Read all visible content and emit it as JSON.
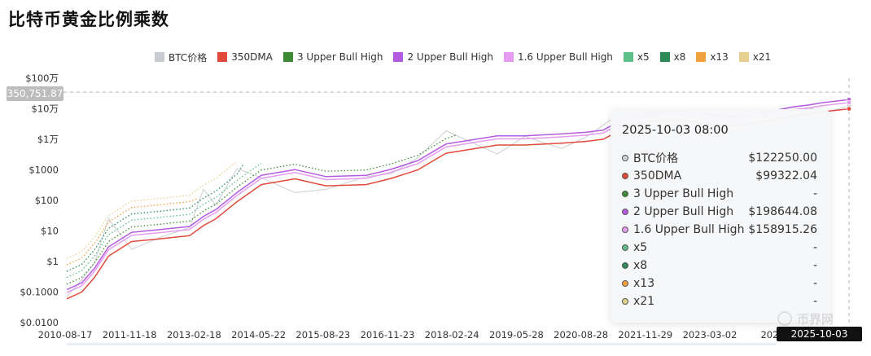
{
  "page": {
    "title": "比特币黄金比例乘数"
  },
  "chart_data": {
    "type": "line",
    "title": "比特币黄金比例乘数",
    "y_scale": "log",
    "ylim": [
      0.01,
      1000000
    ],
    "y_ticks": [
      {
        "value": 1000000,
        "label": "$100万"
      },
      {
        "value": 100000,
        "label": "$10万"
      },
      {
        "value": 10000,
        "label": "$1万"
      },
      {
        "value": 1000,
        "label": "$1000"
      },
      {
        "value": 100,
        "label": "$100"
      },
      {
        "value": 10,
        "label": "$10"
      },
      {
        "value": 1,
        "label": "$1"
      },
      {
        "value": 0.1,
        "label": "$0.1000"
      },
      {
        "value": 0.01,
        "label": "$0.0100"
      }
    ],
    "xlim": [
      "2010-08-17",
      "2025-10-03"
    ],
    "x_ticks": [
      "2010-08-17",
      "2011-11-18",
      "2013-02-18",
      "2014-05-22",
      "2015-08-23",
      "2016-11-23",
      "2018-02-24",
      "2019-05-28",
      "2020-08-28",
      "2021-11-29",
      "2023-03-02",
      "2024-"
    ],
    "legend_position": "top",
    "grid": false,
    "series": [
      {
        "name": "BTC价格",
        "color": "#c9cdd2",
        "style": "thin",
        "x": [
          "2010-08-17",
          "2010-12-01",
          "2011-03-01",
          "2011-06-08",
          "2011-11-18",
          "2012-06-01",
          "2013-01-01",
          "2013-04-09",
          "2013-07-05",
          "2013-12-01",
          "2014-05-22",
          "2015-01-14",
          "2015-08-23",
          "2016-06-01",
          "2016-11-23",
          "2017-06-01",
          "2017-12-17",
          "2018-12-15",
          "2019-06-26",
          "2020-03-13",
          "2020-08-28",
          "2020-12-31",
          "2021-04-14",
          "2021-07-20",
          "2021-11-10",
          "2022-06-18",
          "2022-11-21",
          "2023-06-01",
          "2024-03-14",
          "2024-09-06",
          "2024-12-17",
          "2025-04-08",
          "2025-10-03"
        ],
        "y": [
          0.07,
          0.25,
          0.9,
          25,
          2.5,
          6,
          13,
          230,
          70,
          1100,
          550,
          180,
          230,
          600,
          740,
          2500,
          19000,
          3300,
          12500,
          5000,
          11500,
          29000,
          63000,
          30000,
          67000,
          19000,
          16000,
          27000,
          73000,
          54000,
          107000,
          76000,
          122250
        ]
      },
      {
        "name": "350DMA",
        "color": "#e24a3b",
        "style": "solid",
        "x": [
          "2010-08-17",
          "2010-12-01",
          "2011-03-01",
          "2011-06-08",
          "2011-11-18",
          "2012-06-01",
          "2013-01-01",
          "2013-04-09",
          "2013-07-05",
          "2013-12-01",
          "2014-05-22",
          "2015-01-14",
          "2015-08-23",
          "2016-06-01",
          "2016-11-23",
          "2017-06-01",
          "2017-12-17",
          "2018-12-15",
          "2019-06-26",
          "2020-03-13",
          "2020-08-28",
          "2020-12-31",
          "2021-04-14",
          "2021-07-20",
          "2021-11-10",
          "2022-06-18",
          "2022-11-21",
          "2023-06-01",
          "2024-03-14",
          "2024-09-06",
          "2024-12-17",
          "2025-04-08",
          "2025-10-03"
        ],
        "y": [
          0.06,
          0.1,
          0.3,
          1.5,
          4.5,
          5.5,
          7,
          15,
          25,
          90,
          330,
          510,
          300,
          330,
          520,
          1000,
          3500,
          6500,
          6500,
          7500,
          8500,
          10000,
          18000,
          28000,
          38000,
          42000,
          34000,
          26000,
          40000,
          58000,
          66000,
          80000,
          99322.04
        ]
      },
      {
        "name": "3 Upper Bull High",
        "color": "#3d8b37",
        "style": "dotted",
        "x": [
          "2010-08-17",
          "2010-12-01",
          "2011-03-01",
          "2011-06-08",
          "2011-11-18",
          "2012-06-01",
          "2013-01-01",
          "2013-04-09",
          "2013-07-05",
          "2013-12-01",
          "2014-05-22",
          "2015-01-14",
          "2015-08-23",
          "2016-06-01",
          "2016-11-23",
          "2017-06-01",
          "2017-12-17",
          "2018-02-24"
        ],
        "y": [
          0.18,
          0.3,
          0.9,
          4.5,
          13.5,
          16.5,
          21,
          45,
          75,
          270,
          990,
          1530,
          900,
          990,
          1560,
          3000,
          10500,
          13500
        ]
      },
      {
        "name": "2 Upper Bull High",
        "color": "#b45ce0",
        "style": "solid",
        "x": [
          "2010-08-17",
          "2010-12-01",
          "2011-03-01",
          "2011-06-08",
          "2011-11-18",
          "2012-06-01",
          "2013-01-01",
          "2013-04-09",
          "2013-07-05",
          "2013-12-01",
          "2014-05-22",
          "2015-01-14",
          "2015-08-23",
          "2016-06-01",
          "2016-11-23",
          "2017-06-01",
          "2017-12-17",
          "2018-12-15",
          "2019-06-26",
          "2020-03-13",
          "2020-08-28",
          "2020-12-31",
          "2021-04-14",
          "2021-07-20",
          "2021-11-10",
          "2022-06-18",
          "2022-11-21",
          "2023-06-01",
          "2024-03-14",
          "2024-09-06",
          "2024-12-17",
          "2025-04-08",
          "2025-10-03"
        ],
        "y": [
          0.12,
          0.2,
          0.6,
          3,
          9,
          11,
          14,
          30,
          50,
          180,
          660,
          1020,
          600,
          660,
          1040,
          2000,
          7000,
          13000,
          13000,
          15000,
          17000,
          20000,
          36000,
          56000,
          76000,
          84000,
          68000,
          52000,
          80000,
          116000,
          132000,
          160000,
          198644.08
        ]
      },
      {
        "name": "1.6 Upper Bull High",
        "color": "#e59cf0",
        "style": "solid",
        "x": [
          "2010-08-17",
          "2010-12-01",
          "2011-03-01",
          "2011-06-08",
          "2011-11-18",
          "2012-06-01",
          "2013-01-01",
          "2013-04-09",
          "2013-07-05",
          "2013-12-01",
          "2014-05-22",
          "2015-01-14",
          "2015-08-23",
          "2016-06-01",
          "2016-11-23",
          "2017-06-01",
          "2017-12-17",
          "2018-12-15",
          "2019-06-26",
          "2020-03-13",
          "2020-08-28",
          "2020-12-31",
          "2021-04-14",
          "2021-07-20",
          "2021-11-10",
          "2022-06-18",
          "2022-11-21",
          "2023-06-01",
          "2024-03-14",
          "2024-09-06",
          "2024-12-17",
          "2025-04-08",
          "2025-10-03"
        ],
        "y": [
          0.096,
          0.16,
          0.48,
          2.4,
          7.2,
          8.8,
          11.2,
          24,
          40,
          144,
          528,
          816,
          480,
          528,
          832,
          1600,
          5600,
          10400,
          10400,
          12000,
          13600,
          16000,
          28800,
          44800,
          60800,
          67200,
          54400,
          41600,
          64000,
          92800,
          105600,
          128000,
          158915.26
        ]
      },
      {
        "name": "x5",
        "color": "#5cc08a",
        "style": "dotted",
        "x": [
          "2010-08-17",
          "2010-12-01",
          "2011-03-01",
          "2011-06-08",
          "2011-11-18",
          "2012-06-01",
          "2013-01-01",
          "2013-04-09",
          "2013-07-05",
          "2013-12-01",
          "2014-05-22"
        ],
        "y": [
          0.3,
          0.5,
          1.5,
          7.5,
          22.5,
          27.5,
          35,
          75,
          125,
          450,
          1650
        ]
      },
      {
        "name": "x8",
        "color": "#2e8b57",
        "style": "dotted",
        "x": [
          "2010-08-17",
          "2010-12-01",
          "2011-03-01",
          "2011-06-08",
          "2011-11-18",
          "2012-06-01",
          "2013-01-01",
          "2013-04-09",
          "2013-07-05",
          "2013-12-01",
          "2014-01-15"
        ],
        "y": [
          0.48,
          0.8,
          2.4,
          12,
          36,
          44,
          56,
          120,
          200,
          720,
          1500
        ]
      },
      {
        "name": "x13",
        "color": "#f0a03c",
        "style": "dotted",
        "x": [
          "2010-08-17",
          "2010-12-01",
          "2011-03-01",
          "2011-06-08",
          "2011-11-18",
          "2012-06-01",
          "2013-01-01",
          "2013-02-18"
        ],
        "y": [
          0.78,
          1.3,
          3.9,
          19.5,
          58.5,
          71.5,
          91,
          110
        ]
      },
      {
        "name": "x21",
        "color": "#e6d090",
        "style": "dotted",
        "x": [
          "2010-08-17",
          "2010-12-01",
          "2011-03-01",
          "2011-06-08",
          "2011-11-18",
          "2012-06-01",
          "2013-01-01",
          "2013-04-09",
          "2013-07-05",
          "2013-12-01"
        ],
        "y": [
          1.26,
          2.1,
          6.3,
          31.5,
          94.5,
          115.5,
          147,
          315,
          525,
          1890
        ]
      }
    ],
    "tooltip": {
      "time": "2025-10-03 08:00",
      "rows": [
        {
          "name": "BTC价格",
          "value": "$122250.00",
          "color": "#cfd3d8"
        },
        {
          "name": "350DMA",
          "value": "$99322.04",
          "color": "#e24a3b"
        },
        {
          "name": "3 Upper Bull High",
          "value": "-",
          "color": "#3d8b37"
        },
        {
          "name": "2 Upper Bull High",
          "value": "$198644.08",
          "color": "#b45ce0"
        },
        {
          "name": "1.6 Upper Bull High",
          "value": "$158915.26",
          "color": "#e59cf0"
        },
        {
          "name": "x5",
          "value": "-",
          "color": "#5cc08a"
        },
        {
          "name": "x8",
          "value": "-",
          "color": "#2e8b57"
        },
        {
          "name": "x13",
          "value": "-",
          "color": "#f0a03c"
        },
        {
          "name": "x21",
          "value": "-",
          "color": "#e6d090"
        }
      ]
    },
    "crosshair": {
      "x_label": "2025-10-03 08:00",
      "y_label": "350,751.87",
      "y_value": 350751.87
    }
  },
  "watermark": {
    "text": "币界网"
  }
}
